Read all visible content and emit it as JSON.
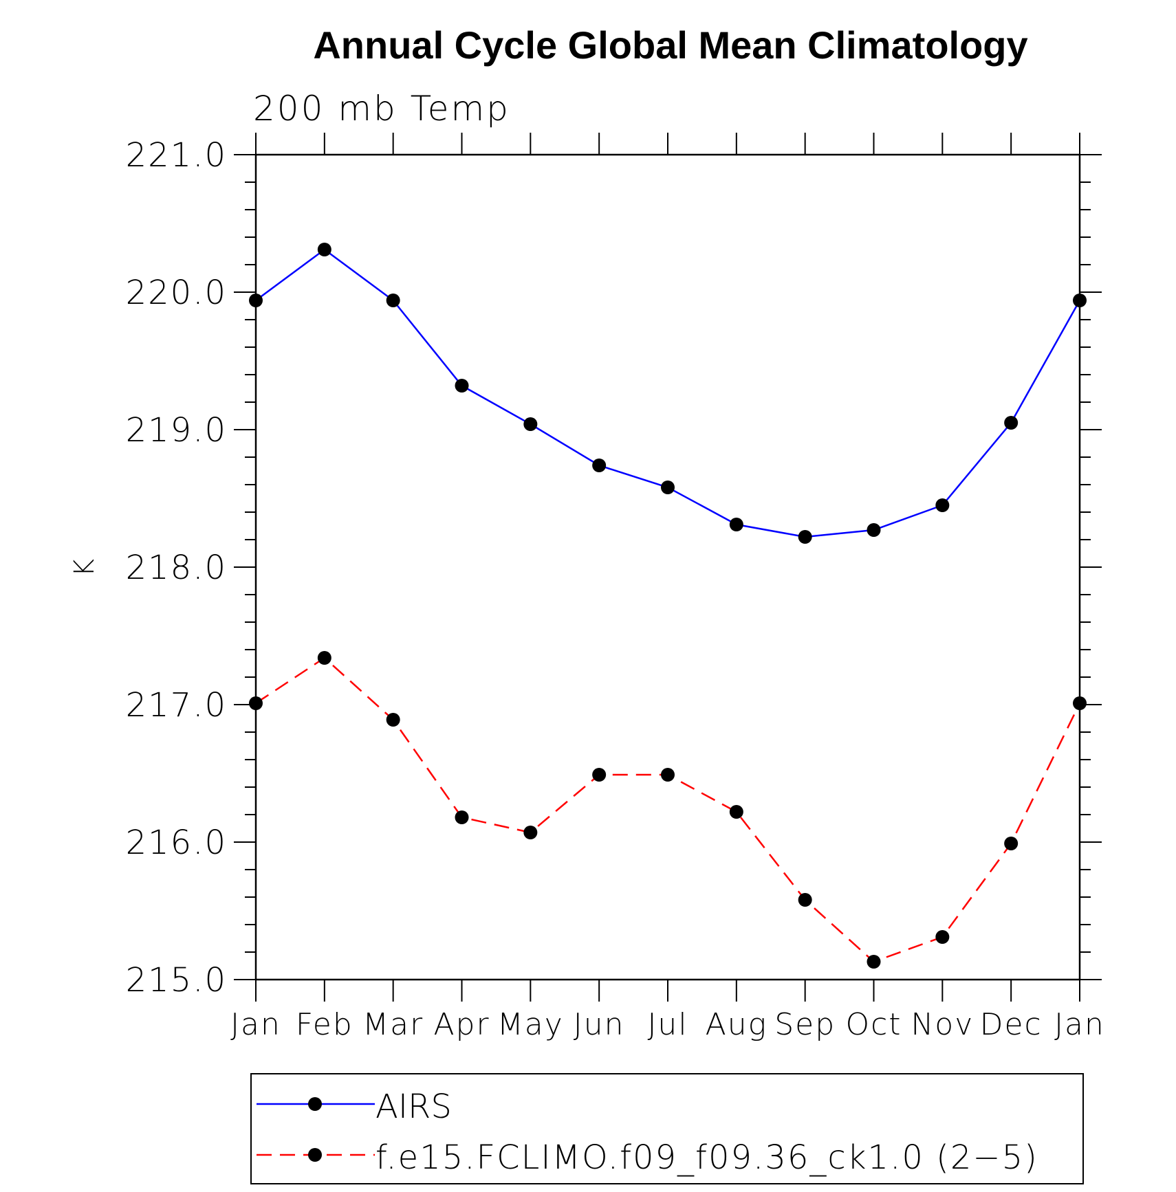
{
  "chart_data": {
    "type": "line",
    "title": "Annual Cycle Global Mean Climatology",
    "subtitle": "200 mb Temp",
    "xlabel": "",
    "ylabel": "K",
    "categories": [
      "Jan",
      "Feb",
      "Mar",
      "Apr",
      "May",
      "Jun",
      "Jul",
      "Aug",
      "Sep",
      "Oct",
      "Nov",
      "Dec",
      "Jan"
    ],
    "ylim": [
      215.0,
      221.0
    ],
    "yticks": [
      215.0,
      216.0,
      217.0,
      218.0,
      219.0,
      220.0,
      221.0
    ],
    "ytick_labels": [
      "215.0",
      "216.0",
      "217.0",
      "218.0",
      "219.0",
      "220.0",
      "221.0"
    ],
    "grid": false,
    "legend_position": "bottom",
    "series": [
      {
        "name": "AIRS",
        "color": "#0000ff",
        "line_style": "solid",
        "marker": "filled-circle",
        "values": [
          219.94,
          220.31,
          219.94,
          219.32,
          219.04,
          218.74,
          218.58,
          218.31,
          218.22,
          218.27,
          218.45,
          219.05,
          219.94
        ]
      },
      {
        "name": "f.e15.FCLIMO.f09_f09.36_ck1.0 (2−5)",
        "color": "#ff0000",
        "line_style": "dashed",
        "marker": "filled-circle",
        "values": [
          217.01,
          217.34,
          216.89,
          216.18,
          216.07,
          216.49,
          216.49,
          216.22,
          215.58,
          215.13,
          215.31,
          215.99,
          217.01
        ]
      }
    ]
  }
}
